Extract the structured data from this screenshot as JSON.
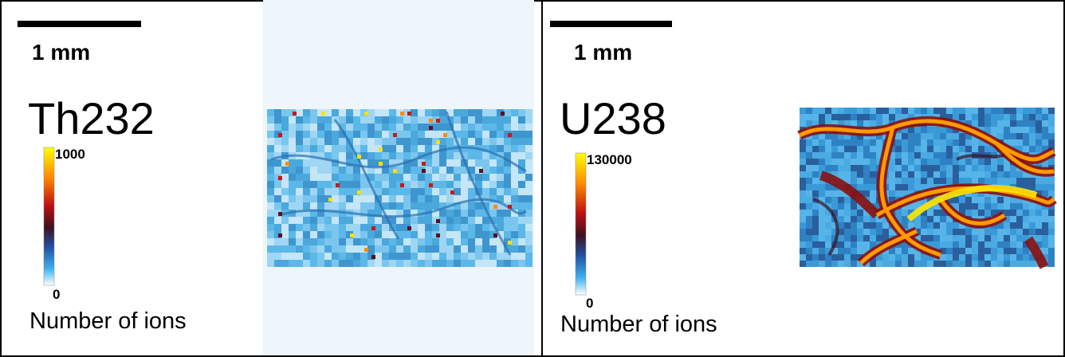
{
  "panels": [
    {
      "scale_label": "1 mm",
      "element": "Th232",
      "colorbar_max": 1000,
      "colorbar_min": 0,
      "colorbar_label": "Number of ions"
    },
    {
      "scale_label": "1 mm",
      "element": "U238",
      "colorbar_max": 130000,
      "colorbar_min": 0,
      "colorbar_label": "Number of ions"
    }
  ]
}
